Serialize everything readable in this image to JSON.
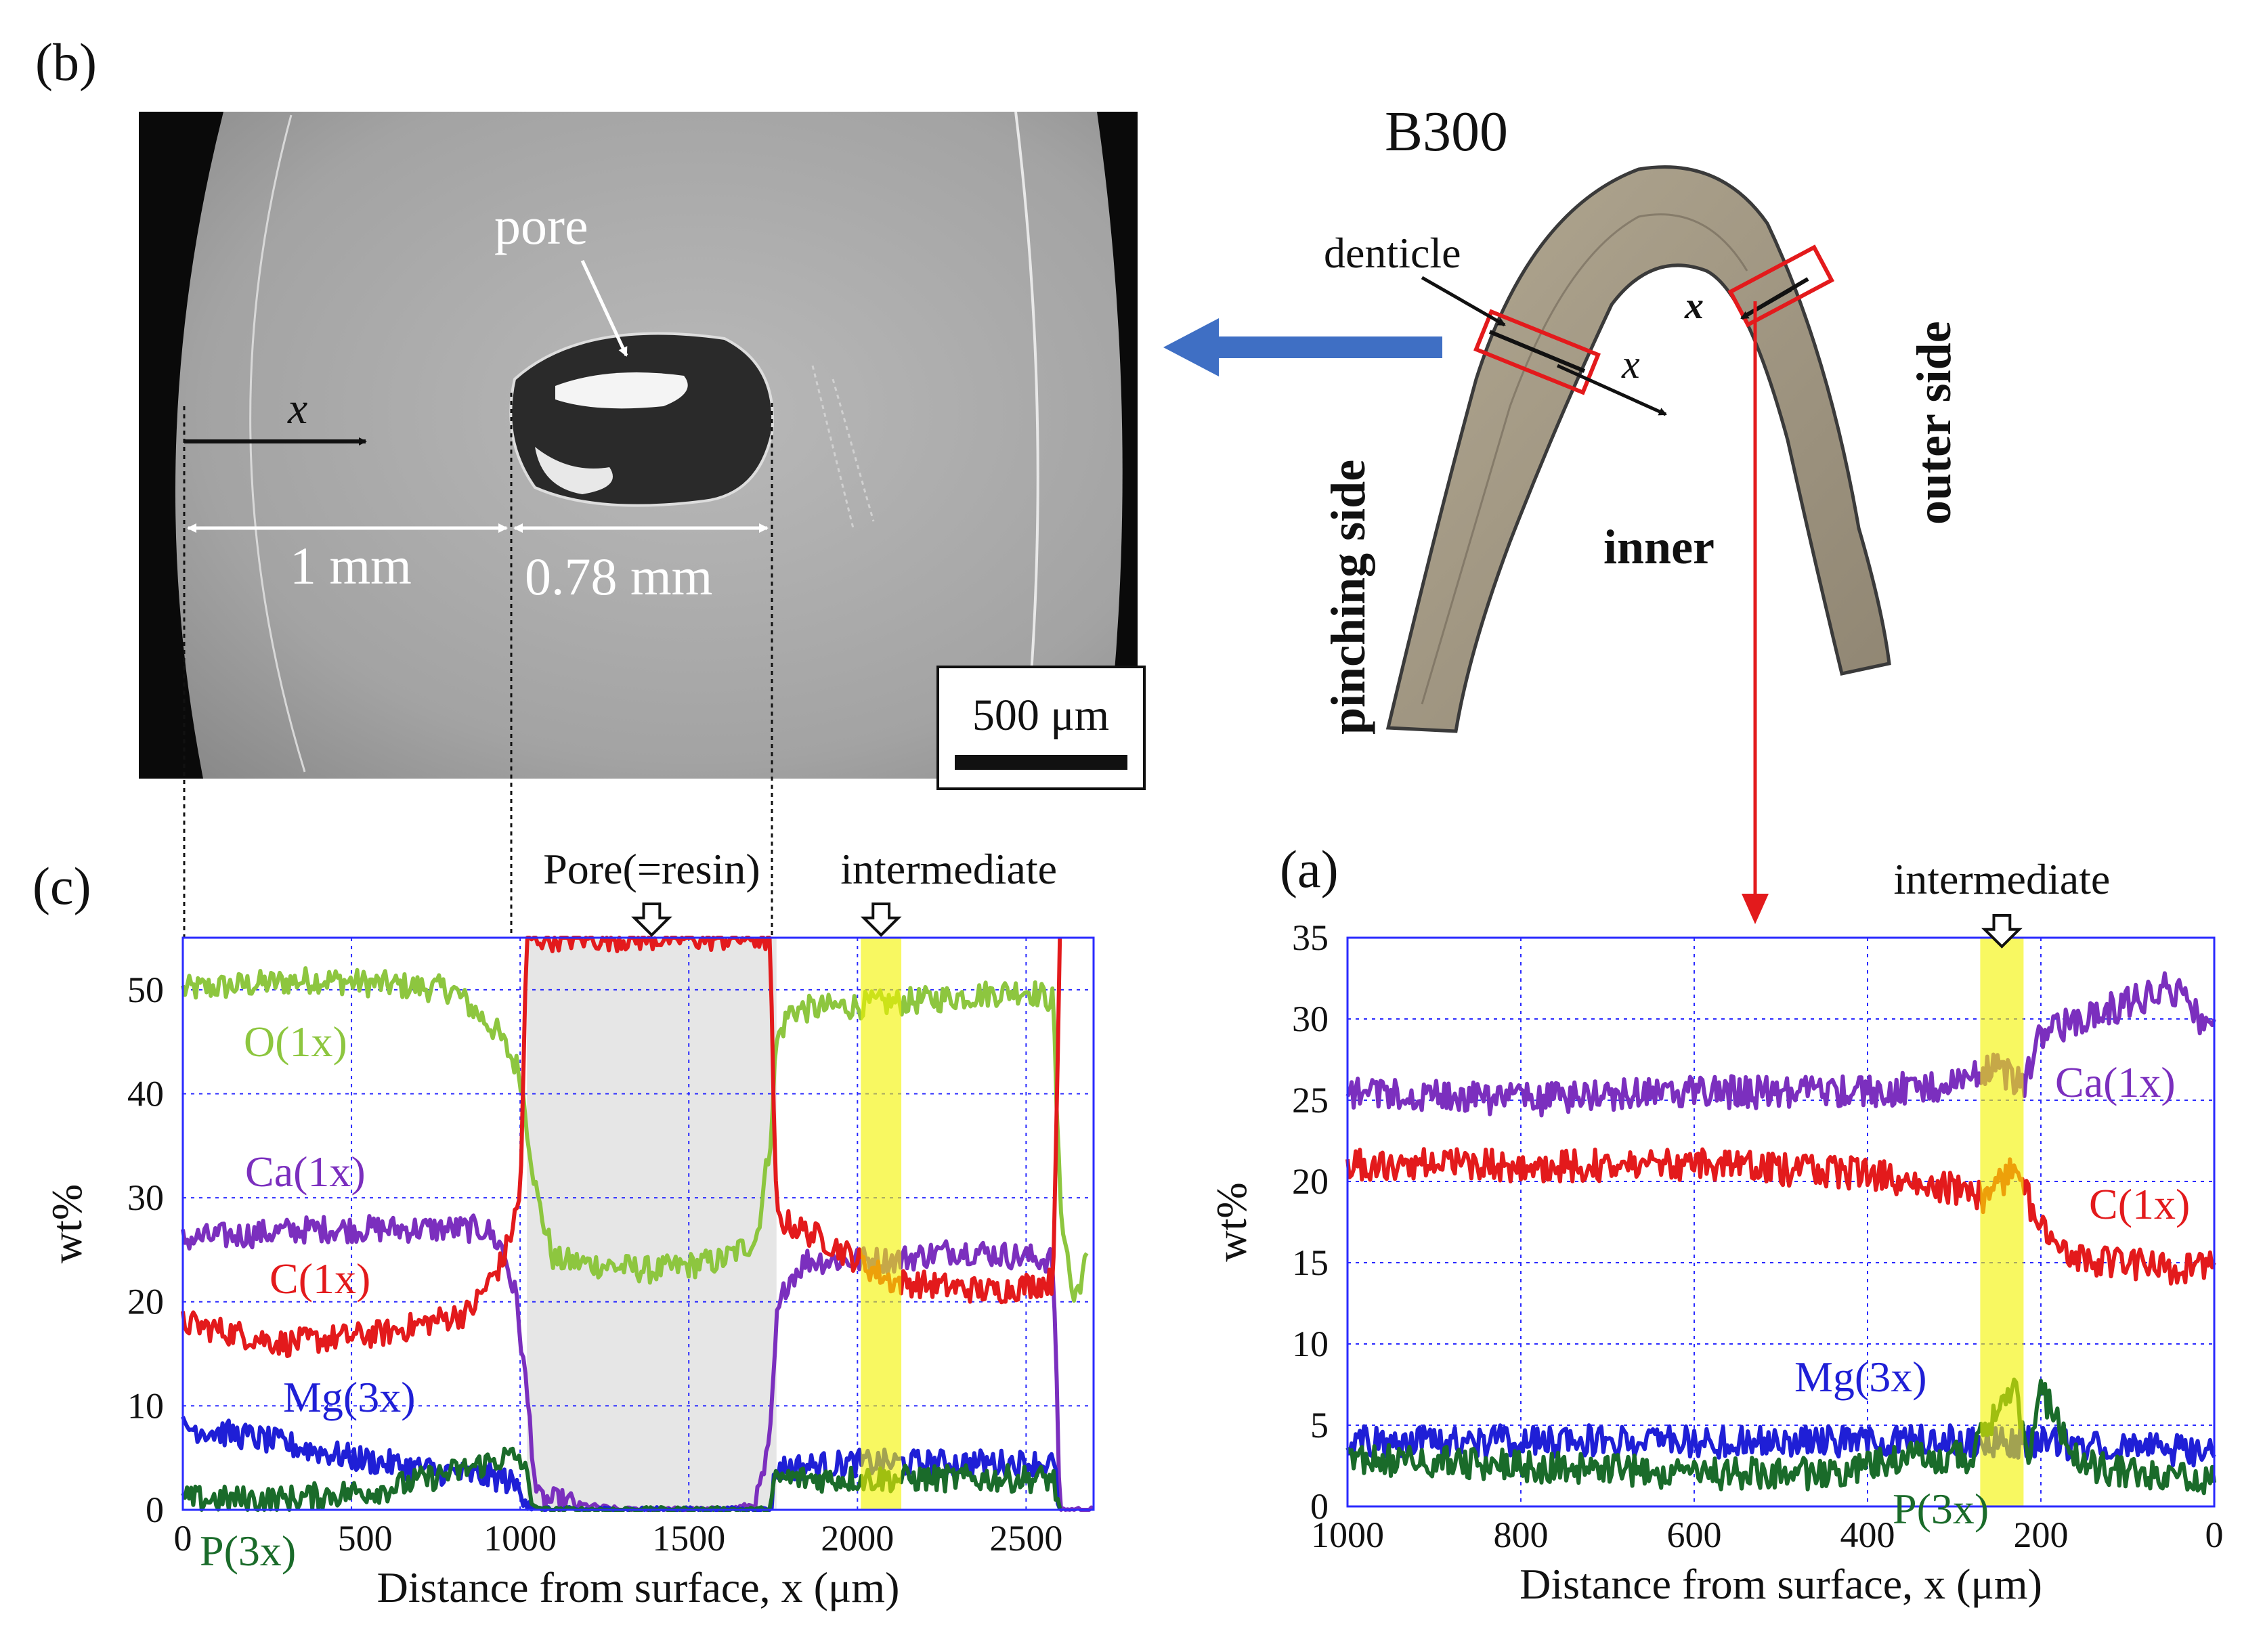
{
  "panels": {
    "b": {
      "letter": "(b)",
      "pore_label": "pore",
      "x_label": "x",
      "dim_1": "1 mm",
      "dim_2": "0.78 mm",
      "scale_bar": "500 μm"
    },
    "schematic": {
      "title": "B300",
      "denticle": "denticle",
      "pinching_side": "pinching side",
      "inner": "inner",
      "outer_side": "outer side",
      "x_label": "x"
    }
  },
  "colors": {
    "O": "#8dc63f",
    "Ca": "#7b2fbe",
    "C": "#e31a1c",
    "Mg": "#1f1fd6",
    "P": "#1a6b2a",
    "highlight": "#f4f400",
    "pore_fill": "#e6e6e6",
    "grid": "#2a2aff",
    "arrow_blue": "#3f6fc4",
    "arrow_red": "#e31a1c"
  },
  "chart_data": [
    {
      "id": "c",
      "letter": "(c)",
      "type": "line",
      "xlabel": "Distance from surface, x (μm)",
      "ylabel": "wt%",
      "xlim": [
        0,
        2700
      ],
      "ylim": [
        0,
        55
      ],
      "xticks": [
        0,
        500,
        1000,
        1500,
        2000,
        2500
      ],
      "yticks": [
        0,
        10,
        20,
        30,
        40,
        50
      ],
      "annotations": {
        "pore_region": {
          "label": "Pore(=resin)",
          "from": 1020,
          "to": 1760
        },
        "intermediate": {
          "label": "intermediate",
          "from": 2010,
          "to": 2130
        }
      },
      "series": [
        {
          "name": "O(1x)",
          "points": [
            [
              0,
              50
            ],
            [
              400,
              51
            ],
            [
              800,
              50
            ],
            [
              930,
              46
            ],
            [
              1000,
              42
            ],
            [
              1020,
              37
            ],
            [
              1050,
              30
            ],
            [
              1100,
              24
            ],
            [
              1400,
              23
            ],
            [
              1600,
              24
            ],
            [
              1700,
              26
            ],
            [
              1740,
              35
            ],
            [
              1760,
              45
            ],
            [
              1800,
              48
            ],
            [
              2200,
              49
            ],
            [
              2500,
              50
            ],
            [
              2580,
              49
            ],
            [
              2600,
              30
            ],
            [
              2640,
              20
            ],
            [
              2680,
              24
            ]
          ]
        },
        {
          "name": "Ca(1x)",
          "points": [
            [
              0,
              26
            ],
            [
              400,
              27
            ],
            [
              800,
              27
            ],
            [
              900,
              27
            ],
            [
              950,
              25
            ],
            [
              990,
              20
            ],
            [
              1030,
              8
            ],
            [
              1050,
              1
            ],
            [
              1300,
              0
            ],
            [
              1600,
              0
            ],
            [
              1700,
              0.5
            ],
            [
              1740,
              6
            ],
            [
              1760,
              18
            ],
            [
              1790,
              22
            ],
            [
              1850,
              24
            ],
            [
              2100,
              24
            ],
            [
              2300,
              25
            ],
            [
              2580,
              24
            ],
            [
              2600,
              0
            ],
            [
              2700,
              0
            ]
          ]
        },
        {
          "name": "C(1x)",
          "points": [
            [
              0,
              18
            ],
            [
              300,
              16
            ],
            [
              600,
              17
            ],
            [
              850,
              19
            ],
            [
              950,
              24
            ],
            [
              1000,
              30
            ],
            [
              1020,
              55
            ],
            [
              1740,
              55
            ],
            [
              1760,
              28
            ],
            [
              1900,
              26
            ],
            [
              2000,
              24
            ],
            [
              2100,
              22
            ],
            [
              2400,
              21
            ],
            [
              2580,
              22
            ],
            [
              2600,
              55
            ]
          ]
        },
        {
          "name": "Mg(3x)",
          "points": [
            [
              0,
              8
            ],
            [
              200,
              7
            ],
            [
              500,
              5
            ],
            [
              800,
              3.5
            ],
            [
              950,
              3
            ],
            [
              1000,
              2
            ],
            [
              1050,
              0
            ],
            [
              1740,
              0
            ],
            [
              1760,
              4
            ],
            [
              2000,
              4.5
            ],
            [
              2200,
              4.5
            ],
            [
              2580,
              4.5
            ],
            [
              2600,
              0
            ]
          ]
        },
        {
          "name": "P(3x)",
          "points": [
            [
              0,
              1
            ],
            [
              300,
              1
            ],
            [
              600,
              2
            ],
            [
              850,
              4
            ],
            [
              950,
              5
            ],
            [
              1000,
              5
            ],
            [
              1050,
              0
            ],
            [
              1740,
              0
            ],
            [
              1760,
              3
            ],
            [
              2000,
              3
            ],
            [
              2200,
              3
            ],
            [
              2580,
              3
            ],
            [
              2600,
              0
            ]
          ]
        }
      ],
      "series_labels": {
        "O": "O(1x)",
        "Ca": "Ca(1x)",
        "C": "C(1x)",
        "Mg": "Mg(3x)",
        "P": "P(3x)"
      }
    },
    {
      "id": "a",
      "letter": "(a)",
      "type": "line",
      "xlabel": "Distance from surface, x (μm)",
      "ylabel": "wt%",
      "xlim": [
        1000,
        0
      ],
      "ylim": [
        0,
        35
      ],
      "xticks": [
        1000,
        800,
        600,
        400,
        200,
        0
      ],
      "yticks": [
        0,
        5,
        10,
        15,
        20,
        25,
        30,
        35
      ],
      "annotations": {
        "intermediate": {
          "label": "intermediate",
          "from": 270,
          "to": 220
        }
      },
      "series": [
        {
          "name": "Ca(1x)",
          "points": [
            [
              1000,
              25.5
            ],
            [
              800,
              25
            ],
            [
              600,
              25.5
            ],
            [
              400,
              25.5
            ],
            [
              300,
              26
            ],
            [
              250,
              27
            ],
            [
              220,
              26
            ],
            [
              200,
              29
            ],
            [
              100,
              31
            ],
            [
              50,
              32
            ],
            [
              0,
              29
            ]
          ]
        },
        {
          "name": "C(1x)",
          "points": [
            [
              1000,
              21
            ],
            [
              800,
              21
            ],
            [
              600,
              21
            ],
            [
              400,
              20.5
            ],
            [
              300,
              19.5
            ],
            [
              260,
              19
            ],
            [
              230,
              21
            ],
            [
              200,
              17
            ],
            [
              150,
              15
            ],
            [
              100,
              15
            ],
            [
              50,
              14.5
            ],
            [
              0,
              15
            ]
          ]
        },
        {
          "name": "Mg(3x)",
          "points": [
            [
              1000,
              4
            ],
            [
              800,
              4
            ],
            [
              600,
              4
            ],
            [
              400,
              4
            ],
            [
              300,
              4
            ],
            [
              250,
              4
            ],
            [
              220,
              4
            ],
            [
              200,
              4
            ],
            [
              100,
              3.5
            ],
            [
              0,
              3.5
            ]
          ]
        },
        {
          "name": "P(3x)",
          "points": [
            [
              1000,
              3
            ],
            [
              800,
              2.5
            ],
            [
              600,
              2
            ],
            [
              450,
              2
            ],
            [
              350,
              3
            ],
            [
              280,
              3
            ],
            [
              250,
              6
            ],
            [
              230,
              8
            ],
            [
              215,
              2
            ],
            [
              200,
              7
            ],
            [
              150,
              2.5
            ],
            [
              100,
              2
            ],
            [
              0,
              1.5
            ]
          ]
        }
      ],
      "series_labels": {
        "Ca": "Ca(1x)",
        "C": "C(1x)",
        "Mg": "Mg(3x)",
        "P": "P(3x)"
      }
    }
  ]
}
